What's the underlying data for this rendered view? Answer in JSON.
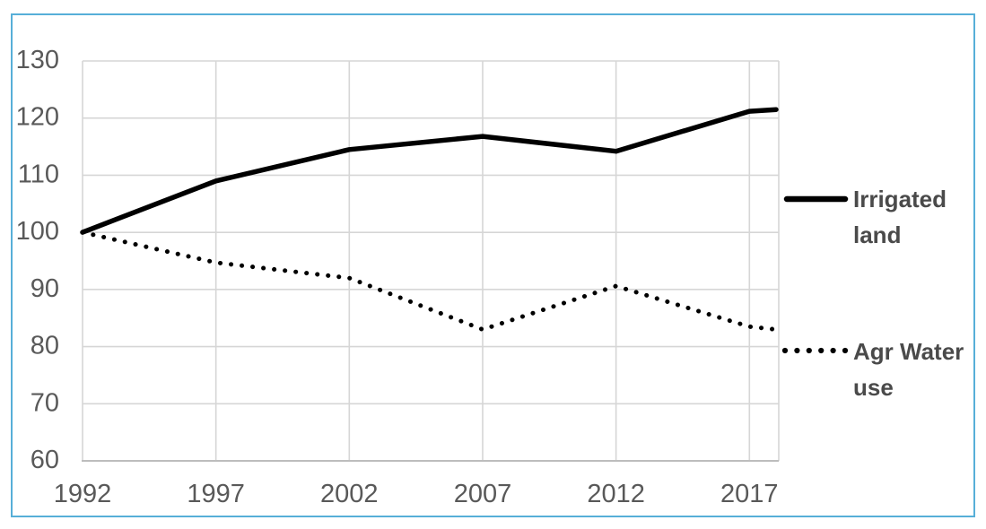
{
  "chart_data": {
    "type": "line",
    "title": "",
    "xlabel": "",
    "ylabel": "",
    "x": [
      1992,
      1997,
      2002,
      2007,
      2012,
      2017,
      2018
    ],
    "series": [
      {
        "name": "Irrigated land",
        "style": "solid",
        "color": "#000000",
        "values": [
          100,
          109,
          114.5,
          116.8,
          114.2,
          121.2,
          121.5
        ]
      },
      {
        "name": "Agr Water use",
        "style": "dotted",
        "color": "#000000",
        "values": [
          100,
          94.7,
          92,
          83,
          90.6,
          83.5,
          83
        ]
      }
    ],
    "xlim": [
      1992,
      2018.1
    ],
    "ylim": [
      60,
      130
    ],
    "x_ticks": [
      1992,
      1997,
      2002,
      2007,
      2012,
      2017
    ],
    "y_ticks": [
      60,
      70,
      80,
      90,
      100,
      110,
      120,
      130
    ],
    "grid": true,
    "legend_position": "right"
  },
  "colors": {
    "border": "#57AFD8",
    "gridline": "#D6D6D6",
    "axis": "#BDBDBD",
    "tick_text": "#595959",
    "legend_text": "#4A4A4A",
    "series": "#000000"
  }
}
